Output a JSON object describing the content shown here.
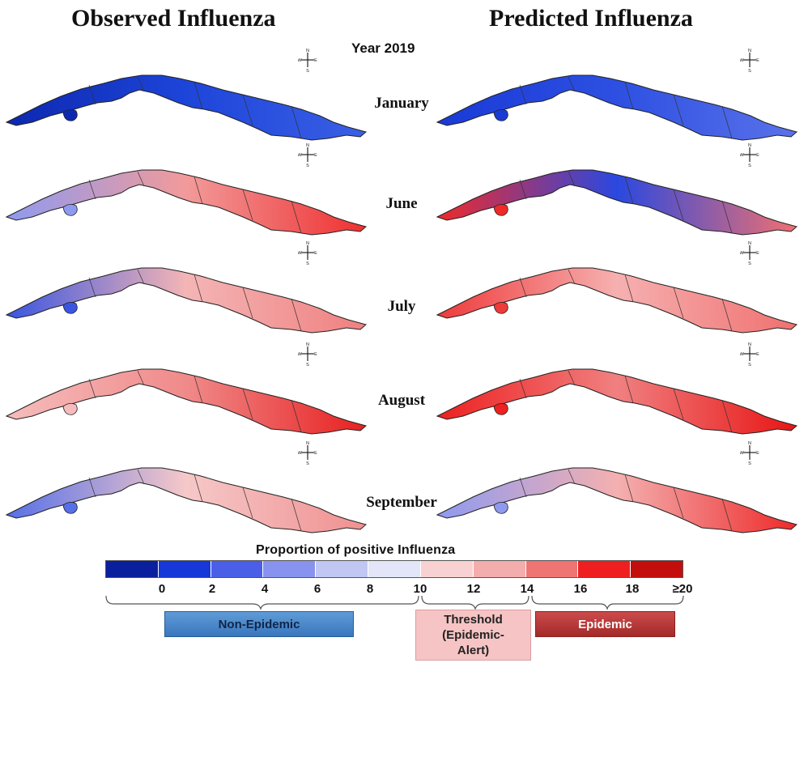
{
  "titles": {
    "observed": "Observed Influenza",
    "predicted": "Predicted Influenza",
    "year": "Year 2019"
  },
  "months": [
    "January",
    "June",
    "July",
    "August",
    "September"
  ],
  "compass": {
    "n": "N",
    "s": "S",
    "e": "E",
    "w": "W"
  },
  "legend": {
    "title": "Proportion of positive Influenza",
    "ticks": [
      "0",
      "2",
      "4",
      "6",
      "8",
      "10",
      "12",
      "14",
      "16",
      "18",
      "≥20"
    ],
    "colors": [
      "#0a1f9e",
      "#1638d8",
      "#4a5ee8",
      "#8793ee",
      "#c0c7f3",
      "#e3e6f8",
      "#f8d2d2",
      "#f4adad",
      "#ef7474",
      "#ef1f1f",
      "#c40d0d"
    ],
    "categories": {
      "non_epidemic": "Non-Epidemic",
      "threshold_line1": "Threshold",
      "threshold_line2": "(Epidemic-",
      "threshold_line3": "Alert)",
      "epidemic": "Epidemic"
    }
  },
  "maps": {
    "observed": [
      {
        "month": "January",
        "fill": [
          "#0d28b0",
          "#1d45d9",
          "#3a5fe6"
        ]
      },
      {
        "month": "June",
        "fill": [
          "#8e9af0",
          "#f29a9a",
          "#ef3030"
        ]
      },
      {
        "month": "July",
        "fill": [
          "#3a55e0",
          "#f4b5b5",
          "#f08080"
        ]
      },
      {
        "month": "August",
        "fill": [
          "#f6bcbc",
          "#f08a8a",
          "#e82020"
        ]
      },
      {
        "month": "September",
        "fill": [
          "#5670e8",
          "#f6c8c8",
          "#f09090"
        ]
      }
    ],
    "predicted": [
      {
        "month": "January",
        "fill": [
          "#1a3ad6",
          "#2d50e2",
          "#5a72ea"
        ]
      },
      {
        "month": "June",
        "fill": [
          "#ef2a2a",
          "#2a48e0",
          "#f07070"
        ]
      },
      {
        "month": "July",
        "fill": [
          "#ef3a3a",
          "#f6b0b0",
          "#f07070"
        ]
      },
      {
        "month": "August",
        "fill": [
          "#ee2020",
          "#f08080",
          "#e81515"
        ]
      },
      {
        "month": "September",
        "fill": [
          "#8e9af0",
          "#f4b0b0",
          "#ee2a2a"
        ]
      }
    ]
  }
}
